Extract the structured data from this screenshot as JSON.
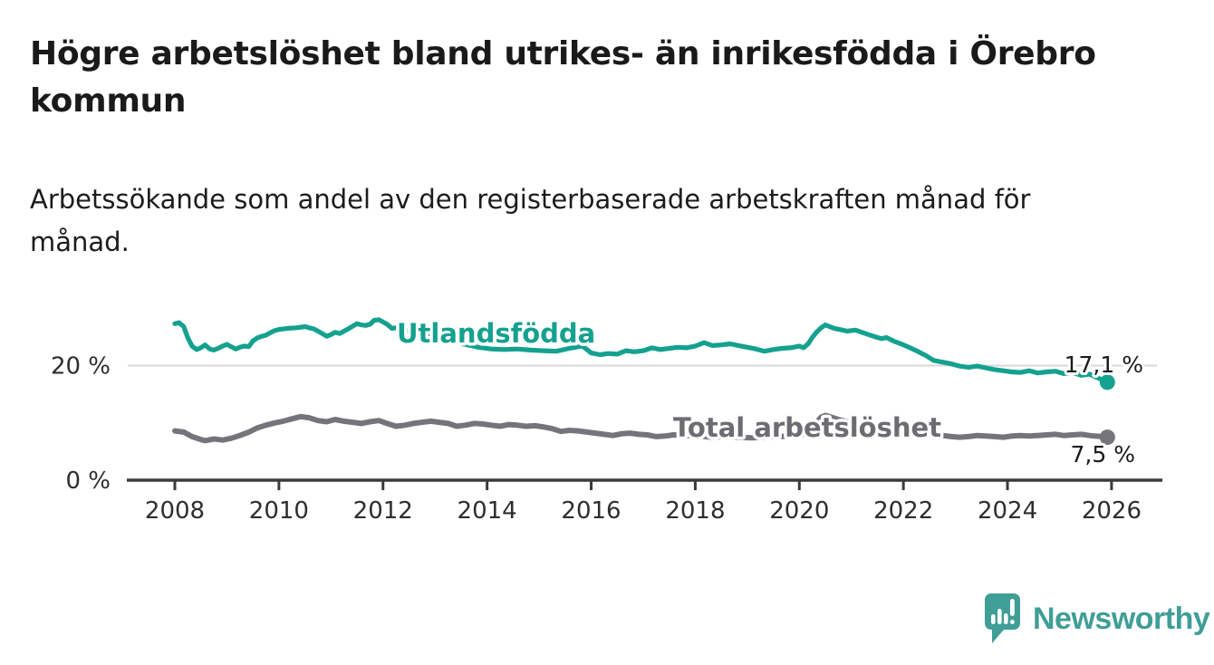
{
  "header": {
    "title": "Högre arbetslöshet bland utrikes- än inrikesfödda i Örebro\nkommun",
    "subtitle": "Arbetssökande som andel av den registerbaserade arbetskraften månad för\nmånad."
  },
  "colors": {
    "accent_teal": "#14A18F",
    "line_gray": "#76747B",
    "label_gray": "#6E6C73",
    "value_text": "#1A1A1A",
    "tick_text": "#2E2E2E",
    "axis": "#3B3B3B",
    "grid": "#D8D8D8",
    "brand": "#3F9E96"
  },
  "chart_data": {
    "type": "line",
    "title": "Högre arbetslöshet bland utrikes- än inrikesfödda i Örebro kommun",
    "subtitle": "Arbetssökande som andel av den registerbaserade arbetskraften månad för månad.",
    "unit": "%",
    "grid": "horizontal-20-only",
    "legend_position": "inline-on-line",
    "x_axis": {
      "range": [
        2007.9,
        2027.0
      ],
      "tick_labels": [
        "2008",
        "2010",
        "2012",
        "2014",
        "2016",
        "2018",
        "2020",
        "2022",
        "2024",
        "2026"
      ],
      "tick_years": [
        2008,
        2010,
        2012,
        2014,
        2016,
        2018,
        2020,
        2022,
        2024,
        2026
      ]
    },
    "y_axis": {
      "range": [
        0,
        30
      ],
      "ticks": [
        {
          "value": 0,
          "label": "0 %"
        },
        {
          "value": 20,
          "label": "20 %"
        }
      ]
    },
    "series": [
      {
        "name": "Utlandsfödda",
        "color": "#14A18F",
        "end_label": "17,1 %",
        "end_value": 17.1,
        "points": [
          [
            2008.0,
            27.3
          ],
          [
            2008.08,
            27.5
          ],
          [
            2008.17,
            26.8
          ],
          [
            2008.25,
            24.8
          ],
          [
            2008.33,
            23.4
          ],
          [
            2008.42,
            22.8
          ],
          [
            2008.5,
            23.1
          ],
          [
            2008.58,
            23.6
          ],
          [
            2008.67,
            22.9
          ],
          [
            2008.75,
            22.7
          ],
          [
            2008.83,
            23.0
          ],
          [
            2008.92,
            23.4
          ],
          [
            2009.0,
            23.7
          ],
          [
            2009.08,
            23.3
          ],
          [
            2009.17,
            22.9
          ],
          [
            2009.25,
            23.2
          ],
          [
            2009.33,
            23.4
          ],
          [
            2009.42,
            23.3
          ],
          [
            2009.5,
            24.3
          ],
          [
            2009.58,
            24.8
          ],
          [
            2009.67,
            25.1
          ],
          [
            2009.75,
            25.3
          ],
          [
            2009.83,
            25.7
          ],
          [
            2009.92,
            26.1
          ],
          [
            2010.0,
            26.3
          ],
          [
            2010.17,
            26.5
          ],
          [
            2010.33,
            26.6
          ],
          [
            2010.5,
            26.8
          ],
          [
            2010.58,
            26.6
          ],
          [
            2010.67,
            26.4
          ],
          [
            2010.83,
            25.6
          ],
          [
            2010.92,
            25.1
          ],
          [
            2011.0,
            25.4
          ],
          [
            2011.08,
            25.8
          ],
          [
            2011.17,
            25.6
          ],
          [
            2011.33,
            26.4
          ],
          [
            2011.5,
            27.3
          ],
          [
            2011.58,
            27.1
          ],
          [
            2011.67,
            27.0
          ],
          [
            2011.75,
            27.2
          ],
          [
            2011.83,
            27.9
          ],
          [
            2011.92,
            28.0
          ],
          [
            2012.0,
            27.6
          ],
          [
            2012.08,
            27.2
          ],
          [
            2012.17,
            26.5
          ],
          [
            2012.25,
            26.6
          ],
          [
            2012.33,
            26.3
          ],
          [
            2012.58,
            25.9
          ],
          [
            2012.83,
            25.4
          ],
          [
            2013.08,
            24.8
          ],
          [
            2013.33,
            24.2
          ],
          [
            2013.58,
            23.7
          ],
          [
            2013.83,
            23.2
          ],
          [
            2014.08,
            22.9
          ],
          [
            2014.33,
            22.8
          ],
          [
            2014.58,
            22.9
          ],
          [
            2014.83,
            22.7
          ],
          [
            2015.08,
            22.6
          ],
          [
            2015.33,
            22.5
          ],
          [
            2015.58,
            23.0
          ],
          [
            2015.83,
            23.4
          ],
          [
            2015.92,
            22.8
          ],
          [
            2016.0,
            22.2
          ],
          [
            2016.17,
            21.9
          ],
          [
            2016.33,
            22.1
          ],
          [
            2016.5,
            22.0
          ],
          [
            2016.67,
            22.6
          ],
          [
            2016.83,
            22.4
          ],
          [
            2017.0,
            22.6
          ],
          [
            2017.17,
            23.1
          ],
          [
            2017.33,
            22.8
          ],
          [
            2017.5,
            23.0
          ],
          [
            2017.67,
            23.2
          ],
          [
            2017.83,
            23.1
          ],
          [
            2018.0,
            23.4
          ],
          [
            2018.17,
            24.0
          ],
          [
            2018.33,
            23.5
          ],
          [
            2018.5,
            23.6
          ],
          [
            2018.67,
            23.8
          ],
          [
            2018.83,
            23.5
          ],
          [
            2019.0,
            23.2
          ],
          [
            2019.17,
            22.9
          ],
          [
            2019.33,
            22.5
          ],
          [
            2019.5,
            22.8
          ],
          [
            2019.67,
            23.0
          ],
          [
            2019.83,
            23.1
          ],
          [
            2020.0,
            23.4
          ],
          [
            2020.08,
            23.1
          ],
          [
            2020.17,
            23.8
          ],
          [
            2020.25,
            24.9
          ],
          [
            2020.33,
            25.8
          ],
          [
            2020.42,
            26.6
          ],
          [
            2020.5,
            27.1
          ],
          [
            2020.58,
            26.8
          ],
          [
            2020.67,
            26.5
          ],
          [
            2020.83,
            26.2
          ],
          [
            2020.92,
            26.0
          ],
          [
            2021.08,
            26.2
          ],
          [
            2021.17,
            25.9
          ],
          [
            2021.33,
            25.4
          ],
          [
            2021.5,
            24.9
          ],
          [
            2021.58,
            24.7
          ],
          [
            2021.67,
            24.9
          ],
          [
            2021.83,
            24.2
          ],
          [
            2021.92,
            23.9
          ],
          [
            2022.08,
            23.3
          ],
          [
            2022.25,
            22.6
          ],
          [
            2022.42,
            21.8
          ],
          [
            2022.58,
            20.9
          ],
          [
            2022.75,
            20.6
          ],
          [
            2022.92,
            20.3
          ],
          [
            2023.08,
            19.9
          ],
          [
            2023.25,
            19.7
          ],
          [
            2023.42,
            19.9
          ],
          [
            2023.58,
            19.6
          ],
          [
            2023.75,
            19.3
          ],
          [
            2023.92,
            19.1
          ],
          [
            2024.08,
            18.9
          ],
          [
            2024.25,
            18.8
          ],
          [
            2024.42,
            19.1
          ],
          [
            2024.58,
            18.7
          ],
          [
            2024.75,
            18.9
          ],
          [
            2024.92,
            19.0
          ],
          [
            2025.08,
            18.6
          ],
          [
            2025.25,
            18.8
          ],
          [
            2025.42,
            18.3
          ],
          [
            2025.58,
            18.5
          ],
          [
            2025.67,
            18.1
          ],
          [
            2025.75,
            17.8
          ],
          [
            2025.83,
            17.4
          ],
          [
            2025.92,
            17.1
          ]
        ]
      },
      {
        "name": "Total arbetslöshet",
        "color": "#76747B",
        "end_label": "7,5 %",
        "end_value": 7.5,
        "points": [
          [
            2008.0,
            8.6
          ],
          [
            2008.17,
            8.4
          ],
          [
            2008.33,
            7.6
          ],
          [
            2008.5,
            7.1
          ],
          [
            2008.58,
            6.9
          ],
          [
            2008.75,
            7.2
          ],
          [
            2008.92,
            7.0
          ],
          [
            2009.08,
            7.3
          ],
          [
            2009.25,
            7.8
          ],
          [
            2009.42,
            8.4
          ],
          [
            2009.58,
            9.1
          ],
          [
            2009.75,
            9.6
          ],
          [
            2009.92,
            10.0
          ],
          [
            2010.08,
            10.3
          ],
          [
            2010.25,
            10.7
          ],
          [
            2010.42,
            11.1
          ],
          [
            2010.58,
            10.9
          ],
          [
            2010.75,
            10.4
          ],
          [
            2010.92,
            10.2
          ],
          [
            2011.08,
            10.6
          ],
          [
            2011.25,
            10.3
          ],
          [
            2011.42,
            10.1
          ],
          [
            2011.58,
            9.9
          ],
          [
            2011.75,
            10.2
          ],
          [
            2011.92,
            10.4
          ],
          [
            2012.08,
            9.9
          ],
          [
            2012.25,
            9.4
          ],
          [
            2012.42,
            9.6
          ],
          [
            2012.58,
            9.9
          ],
          [
            2012.75,
            10.1
          ],
          [
            2012.92,
            10.3
          ],
          [
            2013.08,
            10.1
          ],
          [
            2013.25,
            9.9
          ],
          [
            2013.42,
            9.4
          ],
          [
            2013.58,
            9.6
          ],
          [
            2013.75,
            9.9
          ],
          [
            2013.92,
            9.8
          ],
          [
            2014.08,
            9.6
          ],
          [
            2014.25,
            9.4
          ],
          [
            2014.42,
            9.7
          ],
          [
            2014.58,
            9.6
          ],
          [
            2014.75,
            9.4
          ],
          [
            2014.92,
            9.5
          ],
          [
            2015.08,
            9.3
          ],
          [
            2015.25,
            9.0
          ],
          [
            2015.42,
            8.5
          ],
          [
            2015.58,
            8.7
          ],
          [
            2015.75,
            8.6
          ],
          [
            2015.92,
            8.4
          ],
          [
            2016.08,
            8.2
          ],
          [
            2016.25,
            8.0
          ],
          [
            2016.42,
            7.8
          ],
          [
            2016.58,
            8.1
          ],
          [
            2016.75,
            8.2
          ],
          [
            2016.92,
            8.0
          ],
          [
            2017.08,
            7.9
          ],
          [
            2017.25,
            7.6
          ],
          [
            2017.42,
            7.7
          ],
          [
            2017.58,
            7.9
          ],
          [
            2017.83,
            7.8
          ],
          [
            2018.08,
            7.7
          ],
          [
            2018.33,
            7.5
          ],
          [
            2018.58,
            7.6
          ],
          [
            2018.83,
            7.5
          ],
          [
            2019.08,
            7.4
          ],
          [
            2019.33,
            7.5
          ],
          [
            2019.58,
            7.6
          ],
          [
            2019.83,
            7.7
          ],
          [
            2020.08,
            8.0
          ],
          [
            2020.25,
            9.2
          ],
          [
            2020.42,
            11.0
          ],
          [
            2020.5,
            11.3
          ],
          [
            2020.58,
            11.1
          ],
          [
            2020.75,
            10.6
          ],
          [
            2020.92,
            10.2
          ],
          [
            2021.08,
            10.0
          ],
          [
            2021.25,
            9.6
          ],
          [
            2021.42,
            9.1
          ],
          [
            2021.58,
            8.8
          ],
          [
            2021.75,
            8.5
          ],
          [
            2021.92,
            8.2
          ],
          [
            2022.08,
            8.0
          ],
          [
            2022.25,
            7.9
          ],
          [
            2022.42,
            8.0
          ],
          [
            2022.58,
            7.9
          ],
          [
            2022.75,
            7.8
          ],
          [
            2022.92,
            7.6
          ],
          [
            2023.08,
            7.5
          ],
          [
            2023.25,
            7.6
          ],
          [
            2023.42,
            7.8
          ],
          [
            2023.58,
            7.7
          ],
          [
            2023.75,
            7.6
          ],
          [
            2023.92,
            7.5
          ],
          [
            2024.08,
            7.7
          ],
          [
            2024.25,
            7.8
          ],
          [
            2024.42,
            7.7
          ],
          [
            2024.58,
            7.8
          ],
          [
            2024.75,
            7.9
          ],
          [
            2024.92,
            8.0
          ],
          [
            2025.08,
            7.8
          ],
          [
            2025.25,
            7.9
          ],
          [
            2025.42,
            8.0
          ],
          [
            2025.58,
            7.8
          ],
          [
            2025.67,
            7.7
          ],
          [
            2025.83,
            7.6
          ],
          [
            2025.92,
            7.5
          ]
        ]
      }
    ]
  },
  "footer": {
    "brand": "Newsworthy"
  }
}
